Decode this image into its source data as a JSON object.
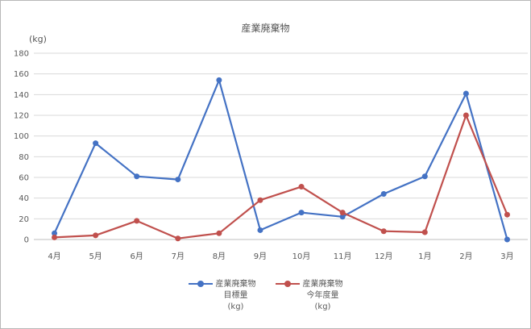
{
  "chart_data": {
    "type": "line",
    "title": "産業廃棄物",
    "ylabel": "(kg)",
    "xlabel": "",
    "categories": [
      "4月",
      "5月",
      "6月",
      "7月",
      "8月",
      "9月",
      "10月",
      "11月",
      "12月",
      "1月",
      "2月",
      "3月"
    ],
    "ylim": [
      0,
      180
    ],
    "yticks": [
      0,
      20,
      40,
      60,
      80,
      100,
      120,
      140,
      160,
      180
    ],
    "grid": true,
    "legend_position": "bottom",
    "series": [
      {
        "name": "産業廃棄物 目標量 (kg)",
        "name_lines": [
          "産業廃棄物",
          "目標量",
          "(kg)"
        ],
        "color": "#4472c4",
        "values": [
          6,
          93,
          61,
          58,
          154,
          9,
          26,
          22,
          44,
          61,
          141,
          0
        ]
      },
      {
        "name": "産業廃棄物 今年度量 (kg)",
        "name_lines": [
          "産業廃棄物",
          "今年度量",
          "(kg)"
        ],
        "color": "#c0504d",
        "values": [
          2,
          4,
          18,
          1,
          6,
          38,
          51,
          26,
          8,
          7,
          120,
          24
        ]
      }
    ]
  }
}
